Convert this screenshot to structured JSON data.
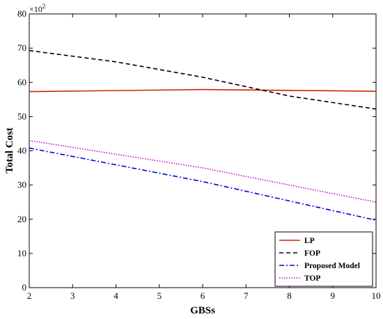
{
  "chart_data": {
    "type": "line",
    "xlabel": "GBSs",
    "ylabel": "Total Cost",
    "multiplier": "×10",
    "multiplier_exp": "2",
    "xlim": [
      2,
      10
    ],
    "ylim": [
      0,
      80
    ],
    "xticks": [
      2,
      3,
      4,
      5,
      6,
      7,
      8,
      9,
      10
    ],
    "yticks": [
      0,
      10,
      20,
      30,
      40,
      50,
      60,
      70,
      80
    ],
    "grid": false,
    "legend_position": "bottom-right",
    "series": [
      {
        "name": "LP",
        "color": "#cc2200",
        "dash": "solid",
        "x": [
          2,
          6,
          10
        ],
        "y": [
          57.3,
          57.9,
          57.4
        ]
      },
      {
        "name": "FOP",
        "color": "#000000",
        "dash": "dashed",
        "x": [
          2,
          4,
          6,
          8,
          10
        ],
        "y": [
          69.3,
          66.0,
          61.5,
          56.0,
          52.2
        ]
      },
      {
        "name": "Proposed Model",
        "color": "#0000dd",
        "dash": "dashdot",
        "x": [
          2,
          6,
          10
        ],
        "y": [
          40.8,
          31.0,
          19.7
        ]
      },
      {
        "name": "TOP",
        "color": "#cc00cc",
        "dash": "dotted",
        "x": [
          2,
          6,
          10
        ],
        "y": [
          43.0,
          35.0,
          25.0
        ]
      }
    ]
  }
}
